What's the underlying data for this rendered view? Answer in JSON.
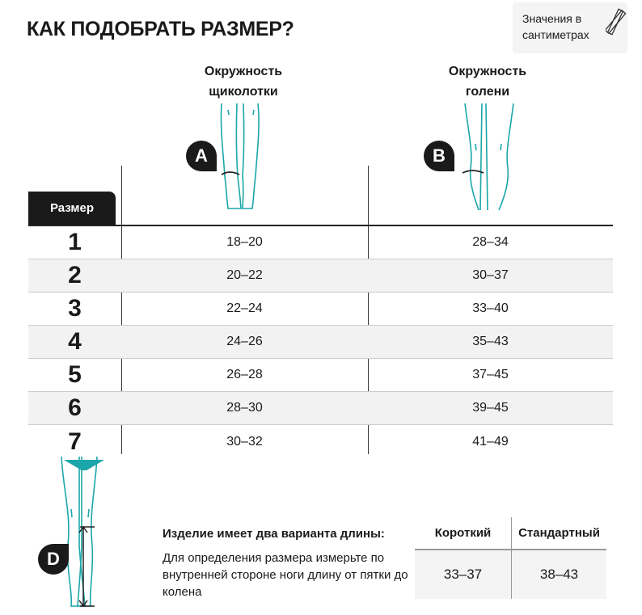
{
  "title": "КАК ПОДОБРАТЬ РАЗМЕР?",
  "units_note": {
    "line1": "Значения в",
    "line2": "сантиметрах",
    "icon": "ruler-icon"
  },
  "columns": [
    {
      "line1": "Окружность",
      "line2": "щиколотки",
      "marker": "A"
    },
    {
      "line1": "Окружность",
      "line2": "голени",
      "marker": "B"
    }
  ],
  "size_label": "Размер",
  "rows": [
    {
      "size": "1",
      "a": "18–20",
      "b": "28–34"
    },
    {
      "size": "2",
      "a": "20–22",
      "b": "30–37"
    },
    {
      "size": "3",
      "a": "22–24",
      "b": "33–40"
    },
    {
      "size": "4",
      "a": "24–26",
      "b": "35–43"
    },
    {
      "size": "5",
      "a": "26–28",
      "b": "37–45"
    },
    {
      "size": "6",
      "a": "28–30",
      "b": "39–45"
    },
    {
      "size": "7",
      "a": "30–32",
      "b": "41–49"
    }
  ],
  "length": {
    "marker": "D",
    "title": "Изделие имеет два варианта длины:",
    "description": "Для определения размера измерьте по внутренней стороне ноги длину от пятки до колена",
    "headers": [
      "Короткий",
      "Стандартный"
    ],
    "values": [
      "33–37",
      "38–43"
    ]
  },
  "colors": {
    "accent": "#1ba6a9",
    "dark": "#1a1a1a"
  }
}
